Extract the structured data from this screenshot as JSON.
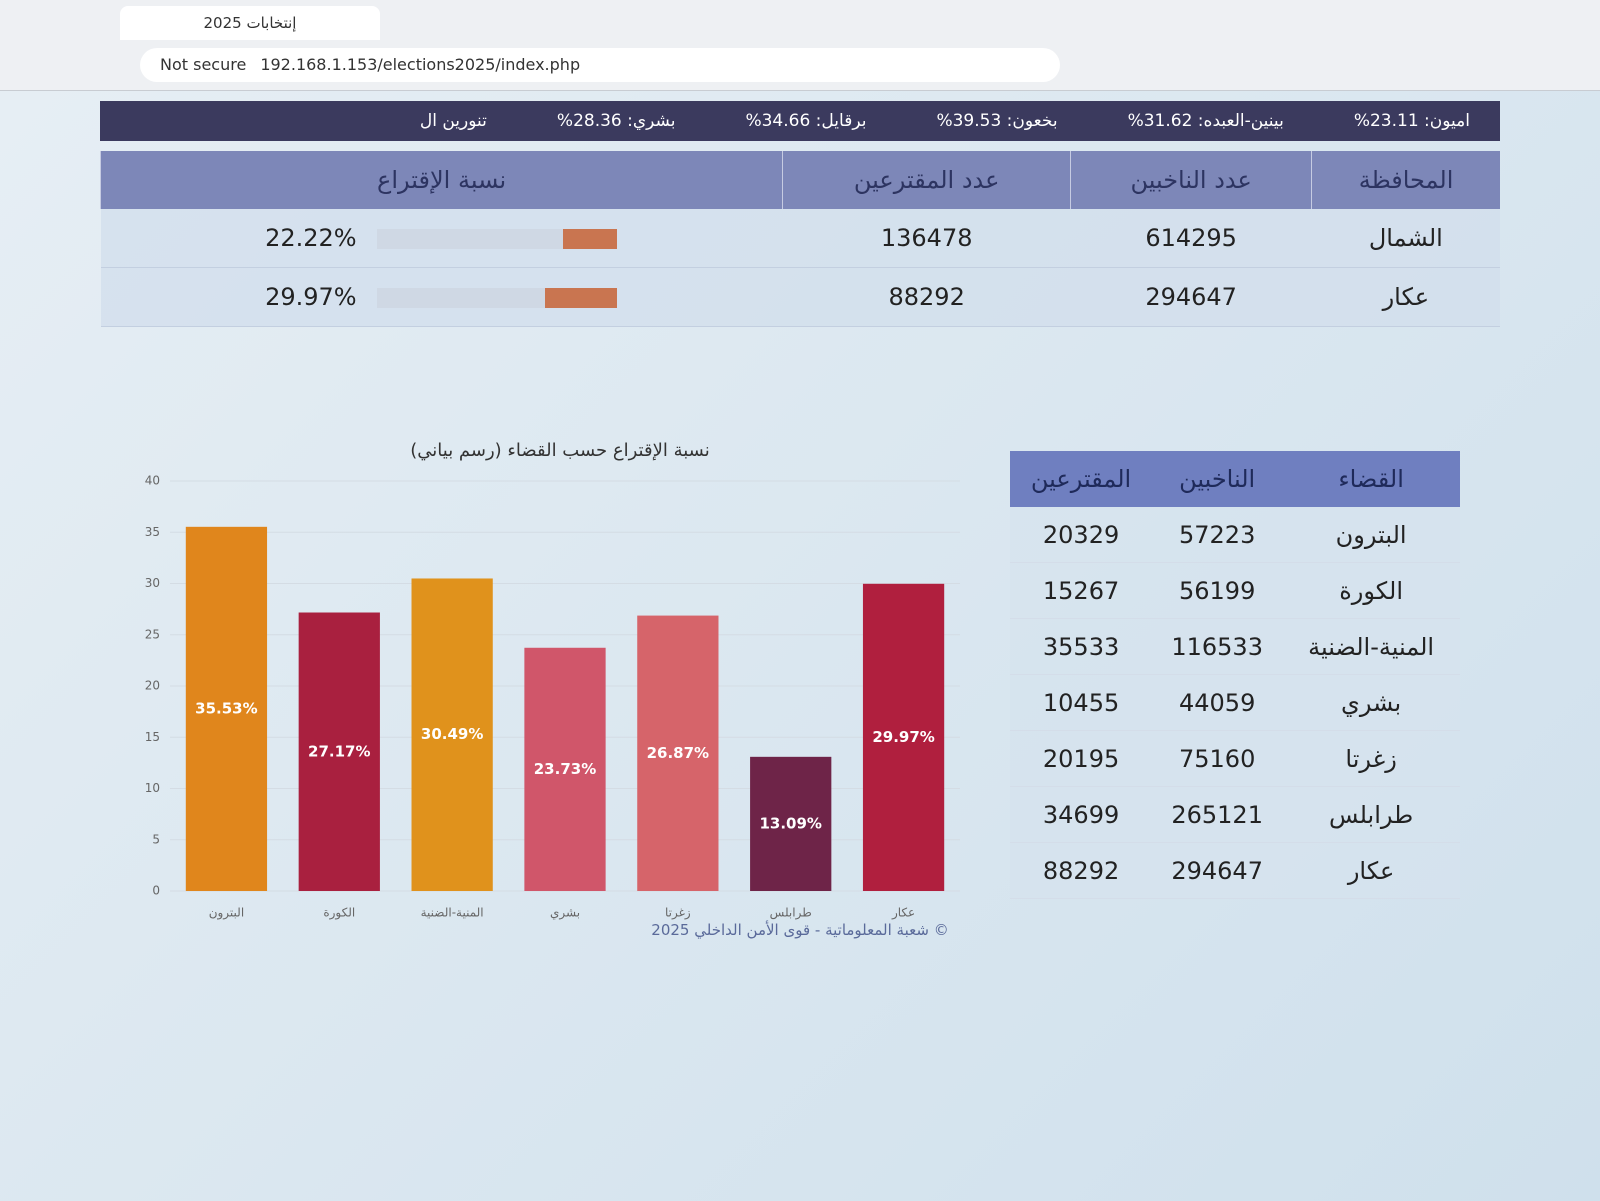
{
  "browser": {
    "tab_title": "إنتخابات 2025",
    "security": "Not secure",
    "url": "192.168.1.153/elections2025/index.php"
  },
  "ticker": [
    "اميون: 23.11%",
    "بينين-العبده: 31.62%",
    "بخعون: 39.53%",
    "برقايل: 34.66%",
    "بشري: 28.36%",
    "تنورين ال"
  ],
  "province_table": {
    "headers": [
      "المحافظة",
      "عدد الناخبين",
      "عدد المقترعين",
      "نسبة الإقتراع"
    ],
    "rows": [
      {
        "name": "الشمال",
        "voters": 614295,
        "ballots": 136478,
        "turnout": 22.22,
        "turnout_label": "22.22%"
      },
      {
        "name": "عكار",
        "voters": 294647,
        "ballots": 88292,
        "turnout": 29.97,
        "turnout_label": "29.97%"
      }
    ]
  },
  "district_table": {
    "headers": [
      "القضاء",
      "الناخبين",
      "المقترعين"
    ],
    "rows": [
      [
        "البترون",
        57223,
        20329
      ],
      [
        "الكورة",
        56199,
        15267
      ],
      [
        "المنية-الضنية",
        116533,
        35533
      ],
      [
        "بشري",
        44059,
        10455
      ],
      [
        "زغرتا",
        75160,
        20195
      ],
      [
        "طرابلس",
        265121,
        34699
      ],
      [
        "عكار",
        294647,
        88292
      ]
    ]
  },
  "chart_data": {
    "type": "bar",
    "title": "نسبة الإقتراع حسب القضاء (رسم بياني)",
    "categories": [
      "البترون",
      "الكورة",
      "المنية-الضنية",
      "بشري",
      "زغرتا",
      "طرابلس",
      "عكار"
    ],
    "values": [
      35.53,
      27.17,
      30.49,
      23.73,
      26.87,
      13.09,
      29.97
    ],
    "value_labels": [
      "35.53%",
      "27.17%",
      "30.49%",
      "23.73%",
      "26.87%",
      "13.09%",
      "29.97%"
    ],
    "colors": [
      "#e0861c",
      "#a9203f",
      "#e0921c",
      "#d0566a",
      "#d6646a",
      "#6e2448",
      "#b01f3e"
    ],
    "ylim": [
      0,
      40
    ],
    "yticks": [
      0,
      5,
      10,
      15,
      20,
      25,
      30,
      35,
      40
    ],
    "grid": true
  },
  "footer": "© شعبة المعلوماتية - قوى الأمن الداخلي 2025"
}
